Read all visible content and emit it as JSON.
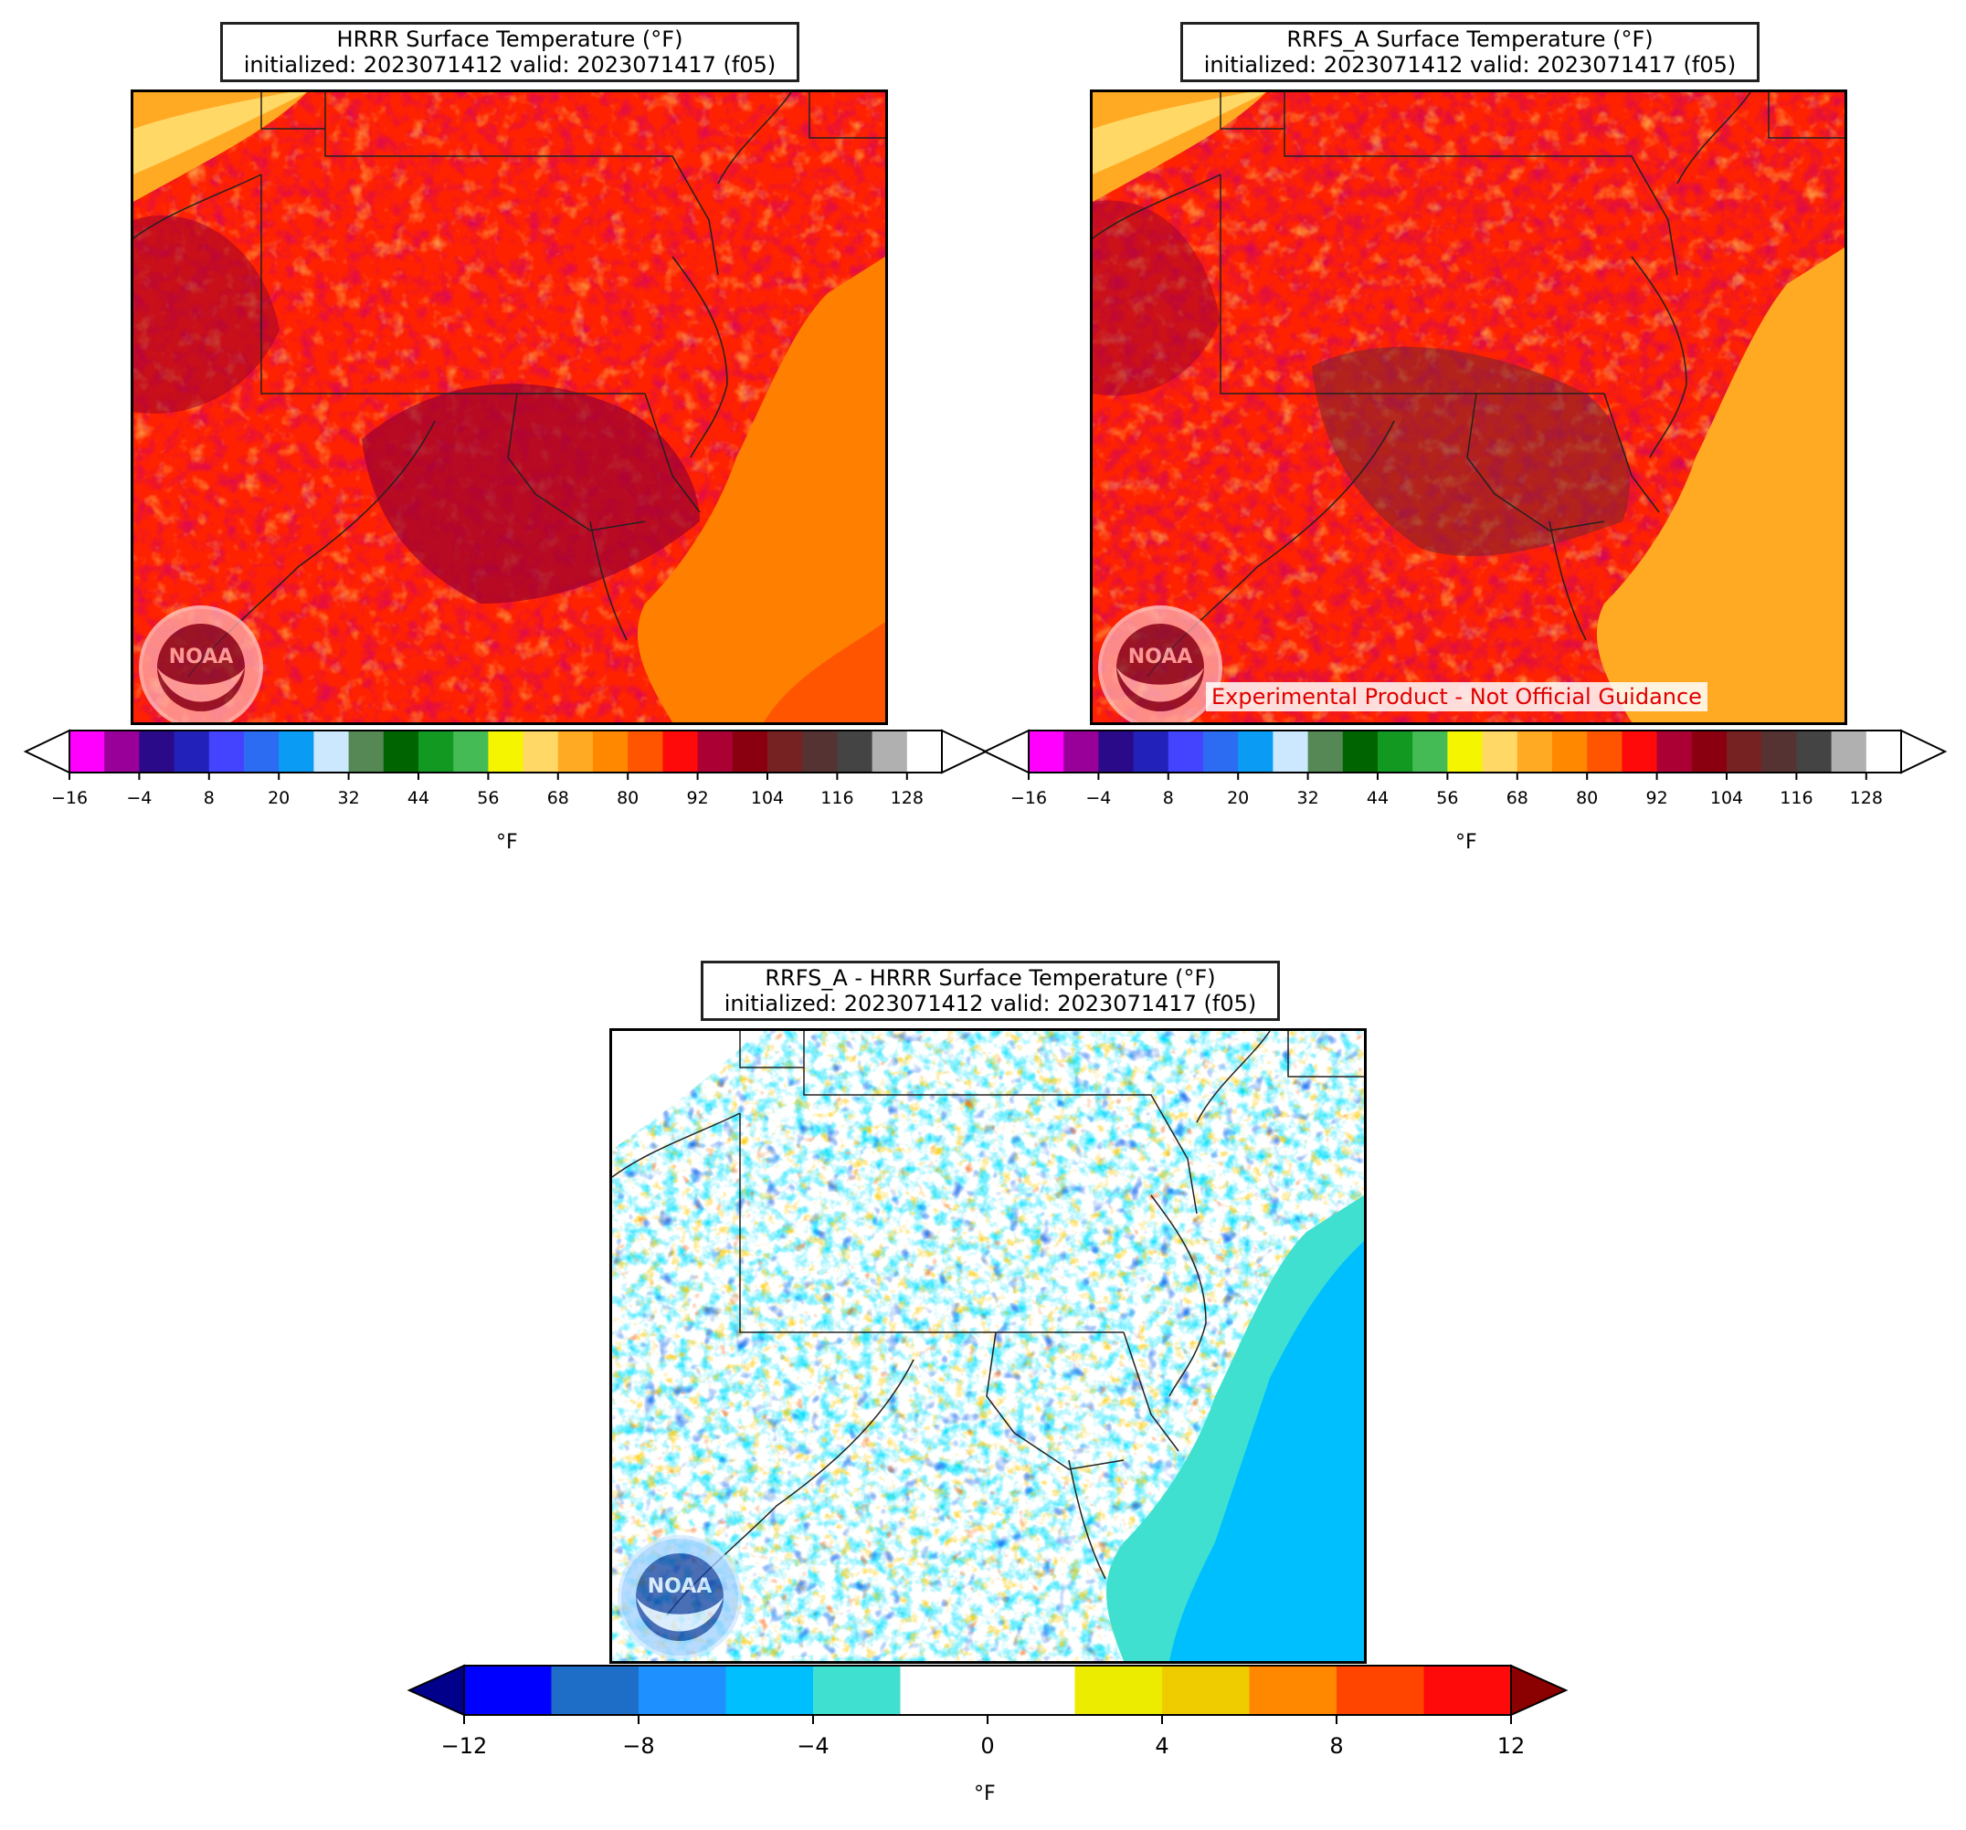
{
  "panels": {
    "hrrr": {
      "title_line1": "HRRR Surface Temperature (°F)",
      "title_line2": "initialized: 2023071412 valid: 2023071417 (f05)"
    },
    "rrfs": {
      "title_line1": "RRFS_A Surface Temperature (°F)",
      "title_line2": "initialized: 2023071412 valid: 2023071417 (f05)",
      "banner": "Experimental Product - Not Official Guidance"
    },
    "diff": {
      "title_line1": "RRFS_A - HRRR Surface Temperature (°F)",
      "title_line2": "initialized: 2023071412 valid: 2023071417 (f05)"
    }
  },
  "logo": {
    "icon": "noaa-logo",
    "text": "NOAA"
  },
  "temp_colorbar": {
    "unit": "°F",
    "ticks": [
      "−16",
      "−4",
      "8",
      "20",
      "32",
      "44",
      "56",
      "68",
      "80",
      "92",
      "104",
      "116",
      "128"
    ],
    "colors": [
      "#ff00ff",
      "#990099",
      "#2a0a88",
      "#2222bb",
      "#4444ff",
      "#2b6cf2",
      "#0a9cf5",
      "#cce8ff",
      "#558855",
      "#006400",
      "#119922",
      "#44bb55",
      "#f5f500",
      "#ffd866",
      "#ffaa22",
      "#ff8800",
      "#ff5500",
      "#ff0a0a",
      "#aa0033",
      "#8a0010",
      "#772222",
      "#553333",
      "#444444",
      "#b0b0b0"
    ]
  },
  "diff_colorbar": {
    "unit": "°F",
    "ticks": [
      "−12",
      "−8",
      "−4",
      "0",
      "4",
      "8",
      "12"
    ],
    "under_color": "#00008b",
    "over_color": "#8b0000",
    "colors": [
      "#0000ff",
      "#1e6ec8",
      "#1e90ff",
      "#00bfff",
      "#40e0d0",
      "#ffffff",
      "#ffffff",
      "#ecec00",
      "#eecc00",
      "#ff8800",
      "#ff4500",
      "#ff0a0a"
    ]
  }
}
